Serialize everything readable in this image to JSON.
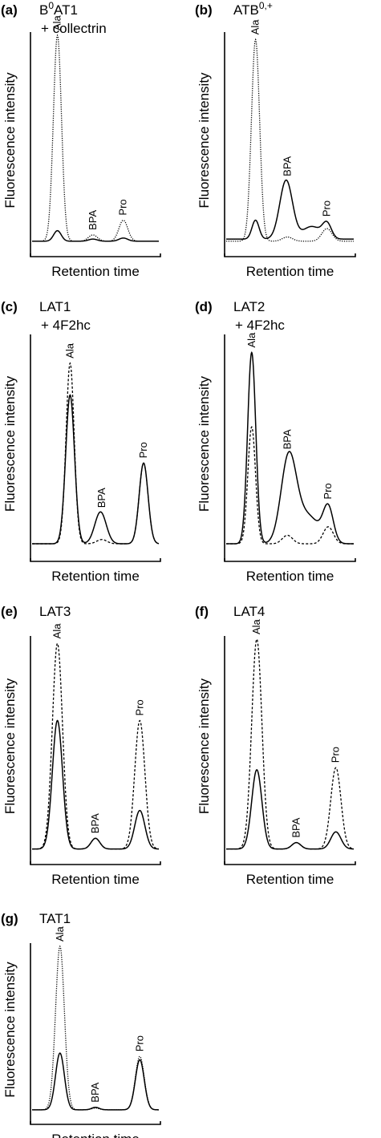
{
  "figure": {
    "y_axis_label": "Fluorescence intensity",
    "x_axis_label": "Retention time",
    "colors": {
      "trace": "#000000",
      "background": "#ffffff"
    }
  },
  "chart_data": [
    {
      "type": "line",
      "panel_label": "(a)",
      "title_html": "B<tspan baseline-shift='super' font-size='12px'>0</tspan>AT1",
      "title_line2": "+ collectrin",
      "xlabel": "Retention time",
      "ylabel": "Fluorescence intensity",
      "xlim": [
        0,
        100
      ],
      "ylim": [
        0,
        100
      ],
      "peaks": [
        {
          "name": "Ala",
          "x": 20
        },
        {
          "name": "BPA",
          "x": 48
        },
        {
          "name": "Pro",
          "x": 72
        }
      ],
      "series": [
        {
          "style": "dot",
          "baseline": 2,
          "peaks": [
            [
              20,
              98,
              3.2
            ],
            [
              48,
              3,
              3.5
            ],
            [
              72,
              10,
              3.5
            ]
          ]
        },
        {
          "style": "solid",
          "baseline": 2,
          "peaks": [
            [
              20,
              5,
              3
            ],
            [
              48,
              1,
              3.5
            ],
            [
              72,
              1.5,
              3.5
            ]
          ]
        }
      ]
    },
    {
      "type": "line",
      "panel_label": "(b)",
      "title_html": "ATB<tspan baseline-shift='super' font-size='12px'>0,+</tspan>",
      "title_line2": "",
      "xlabel": "Retention time",
      "ylabel": "Fluorescence intensity",
      "xlim": [
        0,
        100
      ],
      "ylim": [
        0,
        100
      ],
      "peaks": [
        {
          "name": "Ala",
          "x": 23
        },
        {
          "name": "BPA",
          "x": 48
        },
        {
          "name": "Pro",
          "x": 79
        }
      ],
      "series": [
        {
          "style": "dot",
          "baseline": 2,
          "peaks": [
            [
              23,
              96,
              3.2
            ],
            [
              48,
              2,
              4
            ],
            [
              79,
              6,
              4
            ]
          ]
        },
        {
          "style": "solid",
          "baseline": 3,
          "peaks": [
            [
              23,
              9,
              2.8
            ],
            [
              47,
              28,
              5
            ],
            [
              67,
              6,
              7
            ],
            [
              79,
              7,
              3.5
            ]
          ]
        }
      ]
    },
    {
      "type": "line",
      "panel_label": "(c)",
      "title_html": "LAT1",
      "title_line2": "+ 4F2hc",
      "xlabel": "Retention time",
      "ylabel": "Fluorescence intensity",
      "xlim": [
        0,
        100
      ],
      "ylim": [
        0,
        100
      ],
      "peaks": [
        {
          "name": "Ala",
          "x": 30
        },
        {
          "name": "BPA",
          "x": 55
        },
        {
          "name": "Pro",
          "x": 88
        }
      ],
      "series": [
        {
          "style": "dash",
          "baseline": 3,
          "peaks": [
            [
              30,
              85,
              3.2
            ],
            [
              55,
              2,
              4
            ],
            [
              88,
              38,
              3.5
            ]
          ]
        },
        {
          "style": "solid",
          "baseline": 3,
          "peaks": [
            [
              30,
              70,
              3.5
            ],
            [
              54,
              15,
              4.5
            ],
            [
              88,
              38,
              3.5
            ]
          ]
        }
      ]
    },
    {
      "type": "line",
      "panel_label": "(d)",
      "title_html": "LAT2",
      "title_line2": "+ 4F2hc",
      "xlabel": "Retention time",
      "ylabel": "Fluorescence intensity",
      "xlim": [
        0,
        100
      ],
      "ylim": [
        0,
        100
      ],
      "peaks": [
        {
          "name": "Ala",
          "x": 20
        },
        {
          "name": "BPA",
          "x": 48
        },
        {
          "name": "Pro",
          "x": 80
        }
      ],
      "series": [
        {
          "style": "dash",
          "baseline": 3,
          "peaks": [
            [
              20,
              55,
              3
            ],
            [
              48,
              4,
              4
            ],
            [
              80,
              8,
              4
            ]
          ]
        },
        {
          "style": "solid",
          "baseline": 3,
          "peaks": [
            [
              20,
              90,
              3.2
            ],
            [
              49,
              40,
              6
            ],
            [
              64,
              13,
              9
            ],
            [
              80,
              16,
              4
            ]
          ]
        }
      ]
    },
    {
      "type": "line",
      "panel_label": "(e)",
      "title_html": "LAT3",
      "title_line2": "",
      "xlabel": "Retention time",
      "ylabel": "Fluorescence intensity",
      "xlim": [
        0,
        100
      ],
      "ylim": [
        0,
        100
      ],
      "peaks": [
        {
          "name": "Ala",
          "x": 20
        },
        {
          "name": "BPA",
          "x": 50
        },
        {
          "name": "Pro",
          "x": 85
        }
      ],
      "series": [
        {
          "style": "dash",
          "baseline": 2,
          "peaks": [
            [
              20,
              96,
              4
            ],
            [
              50,
              5,
              3.5
            ],
            [
              85,
              60,
              4
            ]
          ]
        },
        {
          "style": "solid",
          "baseline": 2,
          "peaks": [
            [
              20,
              60,
              4
            ],
            [
              50,
              5,
              3.5
            ],
            [
              85,
              18,
              4
            ]
          ]
        }
      ]
    },
    {
      "type": "line",
      "panel_label": "(f)",
      "title_html": "LAT4",
      "title_line2": "",
      "xlabel": "Retention time",
      "ylabel": "Fluorescence intensity",
      "xlim": [
        0,
        100
      ],
      "ylim": [
        0,
        100
      ],
      "peaks": [
        {
          "name": "Ala",
          "x": 24
        },
        {
          "name": "BPA",
          "x": 55
        },
        {
          "name": "Pro",
          "x": 86
        }
      ],
      "series": [
        {
          "style": "dash",
          "baseline": 2,
          "peaks": [
            [
              24,
              98,
              4
            ],
            [
              55,
              3,
              3.5
            ],
            [
              86,
              38,
              4
            ]
          ]
        },
        {
          "style": "solid",
          "baseline": 2,
          "peaks": [
            [
              24,
              37,
              4
            ],
            [
              55,
              3,
              3.5
            ],
            [
              86,
              8,
              4
            ]
          ]
        }
      ]
    },
    {
      "type": "line",
      "panel_label": "(g)",
      "title_html": "TAT1",
      "title_line2": "",
      "xlabel": "Retention time",
      "ylabel": "Fluorescence intensity",
      "xlim": [
        0,
        100
      ],
      "ylim": [
        0,
        100
      ],
      "peaks": [
        {
          "name": "Ala",
          "x": 22
        },
        {
          "name": "BPA",
          "x": 50
        },
        {
          "name": "Pro",
          "x": 85
        }
      ],
      "series": [
        {
          "style": "dot",
          "baseline": 2,
          "peaks": [
            [
              22,
              98,
              3.5
            ],
            [
              50,
              1,
              3
            ],
            [
              85,
              32,
              3.5
            ]
          ]
        },
        {
          "style": "solid",
          "baseline": 2,
          "peaks": [
            [
              22,
              34,
              3.5
            ],
            [
              50,
              1.5,
              3
            ],
            [
              85,
              30,
              3.5
            ]
          ]
        }
      ]
    }
  ]
}
